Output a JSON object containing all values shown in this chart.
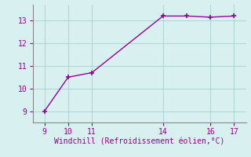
{
  "x": [
    9,
    10,
    11,
    14,
    15,
    16,
    17
  ],
  "y": [
    9.0,
    10.5,
    10.7,
    13.2,
    13.2,
    13.15,
    13.2
  ],
  "line_color": "#990099",
  "marker": "+",
  "marker_size": 4,
  "marker_linewidth": 1.2,
  "background_color": "#d8f0f0",
  "grid_color": "#b0d8d8",
  "xlabel": "Windchill (Refroidissement éolien,°C)",
  "xlabel_color": "#990099",
  "xlabel_fontsize": 7,
  "tick_color": "#990099",
  "tick_fontsize": 7,
  "xlim": [
    8.5,
    17.5
  ],
  "ylim": [
    8.5,
    13.7
  ],
  "xticks": [
    9,
    10,
    11,
    14,
    16,
    17
  ],
  "yticks": [
    9,
    10,
    11,
    12,
    13
  ],
  "spine_color": "#888888",
  "font_family": "monospace",
  "linewidth": 1.0
}
